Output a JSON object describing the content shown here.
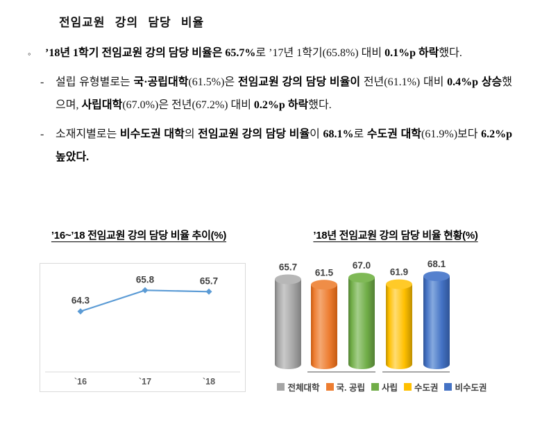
{
  "page": {
    "title": "전임교원 강의 담당 비율",
    "paragraphs": [
      {
        "bullet": "◦",
        "level": 1,
        "runs": [
          {
            "t": "’18년 1학기 전임교원 강의 담당 비율은 65.7%",
            "b": true
          },
          {
            "t": "로 ’17년 1학기(65.8%) 대비 ",
            "b": false
          },
          {
            "t": "0.1%p 하락",
            "b": true
          },
          {
            "t": "했다.",
            "b": false
          }
        ]
      },
      {
        "bullet": "-",
        "level": 2,
        "runs": [
          {
            "t": "설립 유형별로는 ",
            "b": false
          },
          {
            "t": "국·공립대학",
            "b": true
          },
          {
            "t": "(61.5%)은 ",
            "b": false
          },
          {
            "t": "전임교원 강의 담당 비율이",
            "b": true
          },
          {
            "t": " 전년(61.1%) 대비 ",
            "b": false
          },
          {
            "t": "0.4%p 상승",
            "b": true
          },
          {
            "t": "했으며, ",
            "b": false
          },
          {
            "t": "사립대학",
            "b": true
          },
          {
            "t": "(67.0%)은 전년(67.2%) 대비 ",
            "b": false
          },
          {
            "t": "0.2%p 하락",
            "b": true
          },
          {
            "t": "했다.",
            "b": false
          }
        ]
      },
      {
        "bullet": "-",
        "level": 2,
        "runs": [
          {
            "t": "소재지별로는 ",
            "b": false
          },
          {
            "t": "비수도권 대학",
            "b": true
          },
          {
            "t": "의 ",
            "b": false
          },
          {
            "t": "전임교원 강의 담당 비율",
            "b": true
          },
          {
            "t": "이 ",
            "b": false
          },
          {
            "t": "68.1%",
            "b": true
          },
          {
            "t": "로 ",
            "b": false
          },
          {
            "t": "수도권 대학",
            "b": true
          },
          {
            "t": "(61.9%)보다 ",
            "b": false
          },
          {
            "t": "6.2%p 높았다.",
            "b": true
          }
        ]
      }
    ]
  },
  "chart_data": [
    {
      "type": "line",
      "title": "’16~’18 전임교원 강의 담당 비율 추이(%)",
      "categories": [
        "`16",
        "`17",
        "`18"
      ],
      "values": [
        64.3,
        65.8,
        65.7
      ],
      "ylim": [
        60,
        67
      ],
      "grid": false,
      "legend": "none",
      "line_color": "#5B9BD5",
      "label_color": "#3F3F3F",
      "tick_color": "#595959",
      "axis_color": "#D9D9D9",
      "border_color": "#D9D9D9"
    },
    {
      "type": "bar",
      "style": "3d-cylinder",
      "title": "’18년 전임교원 강의 담당 비율 현황(%)",
      "legend_position": "bottom",
      "grid": false,
      "label_color": "#3F3F3F",
      "group_line_color": "#A6A6A6",
      "categories": [
        "전체대학",
        "국. 공립",
        "사립",
        "수도권",
        "비수도권"
      ],
      "values": [
        65.7,
        61.5,
        67.0,
        61.9,
        68.1
      ],
      "series": [
        {
          "label": "전체대학",
          "value": 65.7,
          "base": "#A5A5A5",
          "light": "#C9C9C9",
          "dark": "#7F7F7F",
          "top": "#B7B7B7"
        },
        {
          "label": "국. 공립",
          "value": 61.5,
          "base": "#ED7D31",
          "light": "#F4A872",
          "dark": "#C55A11",
          "top": "#EF8D47"
        },
        {
          "label": "사립",
          "value": 67.0,
          "base": "#70AD47",
          "light": "#A4CE8A",
          "dark": "#538135",
          "top": "#7FB956"
        },
        {
          "label": "수도권",
          "value": 61.9,
          "base": "#FFC000",
          "light": "#FFDC73",
          "dark": "#BF9000",
          "top": "#FFCA28"
        },
        {
          "label": "비수도권",
          "value": 68.1,
          "base": "#4472C4",
          "light": "#85A9DE",
          "dark": "#2F5496",
          "top": "#5581CE"
        }
      ]
    }
  ]
}
